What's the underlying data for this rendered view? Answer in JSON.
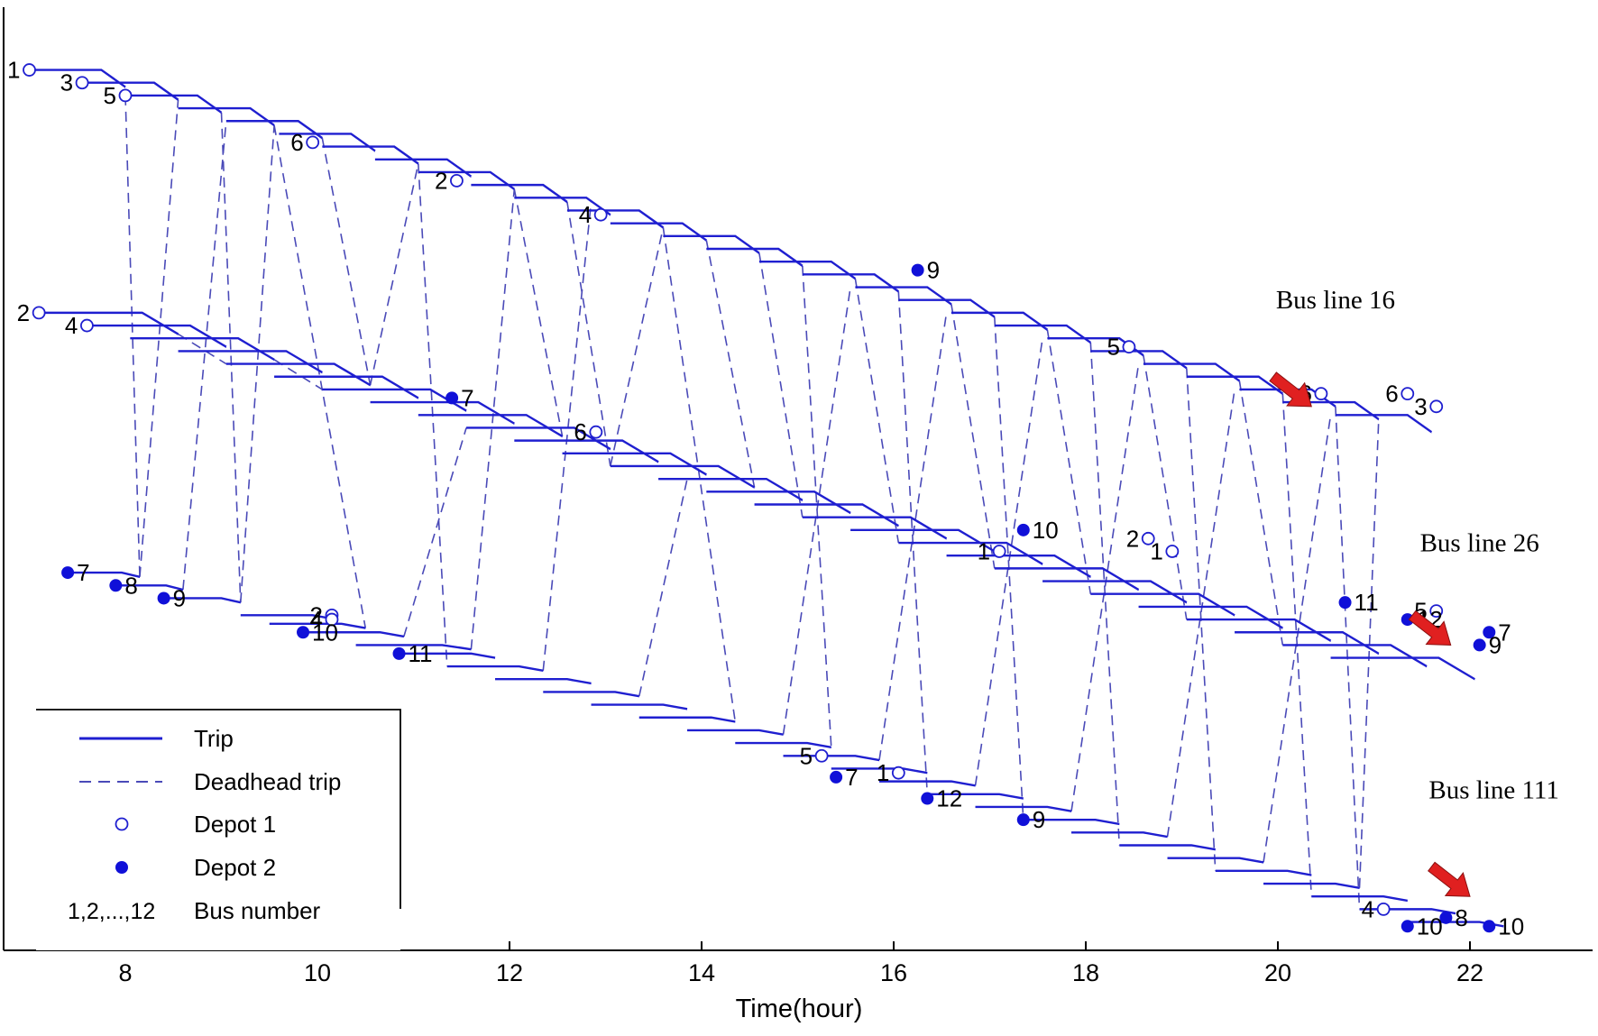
{
  "colors": {
    "trip": "#1f1fd0",
    "deadhead": "#4a4ab8",
    "depot2_fill": "#1010d8",
    "arrow": "#e02020",
    "axis": "#000000"
  },
  "chart_data": {
    "type": "line",
    "xlabel": "Time(hour)",
    "xlim": [
      6.8,
      23.5
    ],
    "xticks": [
      8,
      10,
      12,
      14,
      16,
      18,
      20,
      22
    ],
    "grid": false,
    "legend": {
      "placement": "bottom-left",
      "entries": [
        {
          "symbol": "solid-line",
          "label": "Trip"
        },
        {
          "symbol": "dashed-line",
          "label": "Deadhead trip"
        },
        {
          "symbol": "open-circle",
          "label": "Depot 1"
        },
        {
          "symbol": "filled-circle",
          "label": "Depot 2"
        },
        {
          "symbol": "text",
          "sample": "1,2,...,12",
          "label": "Bus number"
        }
      ]
    },
    "annotations": [
      {
        "text": "Bus line 16",
        "x": 20.6,
        "y": 69,
        "arrow_from": [
          19.95,
          61
        ],
        "arrow_to": [
          20.35,
          57.5
        ]
      },
      {
        "text": "Bus line 26",
        "x": 22.1,
        "y": 40.5,
        "arrow_from": [
          21.4,
          33
        ],
        "arrow_to": [
          21.8,
          29.5
        ]
      },
      {
        "text": "Bus line 111",
        "x": 22.25,
        "y": 11.5,
        "arrow_from": [
          21.6,
          3.5
        ],
        "arrow_to": [
          22.0,
          0
        ]
      }
    ],
    "bus_lines": [
      {
        "name": "Bus line 16",
        "trips": [
          [
            7.0,
            8.0,
            97,
            95
          ],
          [
            7.55,
            8.55,
            95.5,
            93.5
          ],
          [
            8.0,
            9.0,
            94,
            92
          ],
          [
            8.55,
            9.55,
            92.5,
            90.5
          ],
          [
            9.05,
            10.05,
            91,
            89
          ],
          [
            9.6,
            10.6,
            89.5,
            87.5
          ],
          [
            10.05,
            11.05,
            88,
            86
          ],
          [
            10.6,
            11.6,
            86.5,
            84.5
          ],
          [
            11.05,
            12.05,
            85,
            83
          ],
          [
            11.6,
            12.6,
            83.5,
            81.5
          ],
          [
            12.05,
            13.05,
            82,
            80
          ],
          [
            12.6,
            13.6,
            80.5,
            78.5
          ],
          [
            13.05,
            14.05,
            79,
            77
          ],
          [
            13.6,
            14.6,
            77.5,
            75.5
          ],
          [
            14.05,
            15.05,
            76,
            74
          ],
          [
            14.6,
            15.6,
            74.5,
            72.5
          ],
          [
            15.05,
            16.05,
            73,
            71
          ],
          [
            15.6,
            16.6,
            71.5,
            69.5
          ],
          [
            16.05,
            17.05,
            70,
            68
          ],
          [
            16.6,
            17.6,
            68.5,
            66.5
          ],
          [
            17.05,
            18.05,
            67,
            65
          ],
          [
            17.6,
            18.6,
            65.5,
            63.5
          ],
          [
            18.05,
            19.05,
            64,
            62
          ],
          [
            18.6,
            19.6,
            62.5,
            60.5
          ],
          [
            19.05,
            20.05,
            61,
            59
          ],
          [
            19.6,
            20.6,
            59.5,
            57.5
          ],
          [
            20.05,
            21.05,
            58,
            56
          ],
          [
            20.6,
            21.6,
            56.5,
            54.5
          ]
        ],
        "depot1": [
          {
            "x": 7.0,
            "y": 97,
            "bus": "1"
          },
          {
            "x": 7.55,
            "y": 95.5,
            "bus": "3"
          },
          {
            "x": 8.0,
            "y": 94,
            "bus": "5"
          },
          {
            "x": 9.95,
            "y": 88.5,
            "bus": "6"
          },
          {
            "x": 11.45,
            "y": 84,
            "bus": "2"
          },
          {
            "x": 12.95,
            "y": 80,
            "bus": "4"
          },
          {
            "x": 18.45,
            "y": 64.5,
            "bus": "5"
          },
          {
            "x": 20.45,
            "y": 59,
            "bus": "6"
          },
          {
            "x": 21.35,
            "y": 59,
            "bus": "6"
          },
          {
            "x": 21.65,
            "y": 57.5,
            "bus": "3"
          }
        ],
        "depot2": [
          {
            "x": 16.25,
            "y": 73.5,
            "bus": "9"
          }
        ]
      },
      {
        "name": "Bus line 26",
        "trips": [
          [
            7.05,
            8.55,
            68.5,
            66
          ],
          [
            7.55,
            9.05,
            67,
            64.5
          ],
          [
            8.05,
            9.55,
            65.5,
            63
          ],
          [
            8.55,
            10.05,
            64,
            61.5
          ],
          [
            9.05,
            10.55,
            62.5,
            60
          ],
          [
            9.55,
            11.05,
            61,
            58.5
          ],
          [
            10.05,
            11.55,
            59.5,
            57
          ],
          [
            10.55,
            12.05,
            58,
            55.5
          ],
          [
            11.05,
            12.55,
            56.5,
            54
          ],
          [
            11.55,
            13.05,
            55,
            52.5
          ],
          [
            12.05,
            13.55,
            53.5,
            51
          ],
          [
            12.55,
            14.05,
            52,
            49.5
          ],
          [
            13.05,
            14.55,
            50.5,
            48
          ],
          [
            13.55,
            15.05,
            49,
            46.5
          ],
          [
            14.05,
            15.55,
            47.5,
            45
          ],
          [
            14.55,
            16.05,
            46,
            43.5
          ],
          [
            15.05,
            16.55,
            44.5,
            42
          ],
          [
            15.55,
            17.05,
            43,
            40.5
          ],
          [
            16.05,
            17.55,
            41.5,
            39
          ],
          [
            16.55,
            18.05,
            40,
            37.5
          ],
          [
            17.05,
            18.55,
            38.5,
            36
          ],
          [
            17.55,
            19.05,
            37,
            34.5
          ],
          [
            18.05,
            19.55,
            35.5,
            33
          ],
          [
            18.55,
            20.05,
            34,
            31.5
          ],
          [
            19.05,
            20.55,
            32.5,
            30
          ],
          [
            19.55,
            21.05,
            31,
            28.5
          ],
          [
            20.05,
            21.55,
            29.5,
            27
          ],
          [
            20.55,
            22.05,
            28,
            25.5
          ]
        ],
        "depot1": [
          {
            "x": 7.1,
            "y": 68.5,
            "bus": "2"
          },
          {
            "x": 7.6,
            "y": 67,
            "bus": "4"
          },
          {
            "x": 12.9,
            "y": 54.5,
            "bus": "6"
          },
          {
            "x": 17.1,
            "y": 40.5,
            "bus": "1"
          },
          {
            "x": 18.65,
            "y": 42,
            "bus": "2"
          },
          {
            "x": 18.9,
            "y": 40.5,
            "bus": "1"
          },
          {
            "x": 21.65,
            "y": 33.5,
            "bus": "5"
          }
        ],
        "depot2": [
          {
            "x": 11.4,
            "y": 58.5,
            "bus": "7"
          },
          {
            "x": 17.35,
            "y": 43,
            "bus": "10"
          },
          {
            "x": 20.7,
            "y": 34.5,
            "bus": "11"
          },
          {
            "x": 21.35,
            "y": 32.5,
            "bus": "12"
          },
          {
            "x": 22.2,
            "y": 31,
            "bus": "7"
          },
          {
            "x": 22.1,
            "y": 29.5,
            "bus": "9"
          }
        ]
      },
      {
        "name": "Bus line 111",
        "trips": [
          [
            7.4,
            8.15,
            38,
            37.5
          ],
          [
            7.9,
            8.6,
            36.5,
            36
          ],
          [
            8.4,
            9.2,
            35,
            34.5
          ],
          [
            9.2,
            10.2,
            33,
            32.5
          ],
          [
            9.5,
            10.5,
            32,
            31.5
          ],
          [
            9.9,
            10.9,
            31,
            30.5
          ],
          [
            10.4,
            11.6,
            29.5,
            29
          ],
          [
            10.85,
            11.85,
            28.5,
            28
          ],
          [
            11.35,
            12.35,
            27,
            26.5
          ],
          [
            11.85,
            12.85,
            25.5,
            25
          ],
          [
            12.35,
            13.35,
            24,
            23.5
          ],
          [
            12.85,
            13.85,
            22.5,
            22
          ],
          [
            13.35,
            14.35,
            21,
            20.5
          ],
          [
            13.85,
            14.85,
            19.5,
            19
          ],
          [
            14.35,
            15.35,
            18,
            17.5
          ],
          [
            14.85,
            15.85,
            16.5,
            16
          ],
          [
            15.35,
            16.35,
            15,
            14.5
          ],
          [
            15.85,
            16.85,
            13.5,
            13
          ],
          [
            16.35,
            17.35,
            12,
            11.5
          ],
          [
            16.85,
            17.85,
            10.5,
            10
          ],
          [
            17.35,
            18.35,
            9,
            8.5
          ],
          [
            17.85,
            18.85,
            7.5,
            7
          ],
          [
            18.35,
            19.35,
            6,
            5.5
          ],
          [
            18.85,
            19.85,
            4.5,
            4
          ],
          [
            19.35,
            20.35,
            3,
            2.5
          ],
          [
            19.85,
            20.85,
            1.5,
            1
          ],
          [
            20.35,
            21.35,
            0,
            -0.5
          ],
          [
            20.85,
            21.85,
            -1.5,
            -2
          ],
          [
            21.35,
            22.35,
            -3,
            -3.5
          ]
        ],
        "depot1": [
          {
            "x": 10.15,
            "y": 33,
            "bus": "2"
          },
          {
            "x": 10.15,
            "y": 32.5,
            "bus": "4"
          },
          {
            "x": 15.25,
            "y": 16.5,
            "bus": "5"
          },
          {
            "x": 16.05,
            "y": 14.5,
            "bus": "1"
          },
          {
            "x": 21.1,
            "y": -1.5,
            "bus": "4"
          }
        ],
        "depot2": [
          {
            "x": 7.4,
            "y": 38,
            "bus": "7"
          },
          {
            "x": 7.9,
            "y": 36.5,
            "bus": "8"
          },
          {
            "x": 8.4,
            "y": 35,
            "bus": "9"
          },
          {
            "x": 9.85,
            "y": 31,
            "bus": "10"
          },
          {
            "x": 10.85,
            "y": 28.5,
            "bus": "11"
          },
          {
            "x": 15.4,
            "y": 14,
            "bus": "7"
          },
          {
            "x": 16.35,
            "y": 11.5,
            "bus": "12"
          },
          {
            "x": 17.35,
            "y": 9,
            "bus": "9"
          },
          {
            "x": 21.75,
            "y": -2.5,
            "bus": "8"
          },
          {
            "x": 21.35,
            "y": -3.5,
            "bus": "10"
          },
          {
            "x": 22.2,
            "y": -3.5,
            "bus": "10"
          }
        ]
      }
    ],
    "deadhead_links": [
      [
        8.0,
        94,
        8.15,
        37.5
      ],
      [
        8.15,
        37.5,
        8.55,
        93.5
      ],
      [
        8.6,
        36,
        9.05,
        91
      ],
      [
        9.0,
        92,
        9.2,
        34.5
      ],
      [
        9.2,
        34.5,
        9.55,
        90.5
      ],
      [
        9.55,
        90.5,
        10.5,
        31.5
      ],
      [
        10.05,
        89,
        10.55,
        60
      ],
      [
        10.55,
        60,
        11.05,
        86
      ],
      [
        11.05,
        86,
        11.35,
        27
      ],
      [
        11.6,
        29,
        12.05,
        83
      ],
      [
        12.05,
        83,
        12.55,
        54
      ],
      [
        12.6,
        81.5,
        13.05,
        50.5
      ],
      [
        13.05,
        50.5,
        13.6,
        78.5
      ],
      [
        13.6,
        78.5,
        14.35,
        20.5
      ],
      [
        14.05,
        77,
        14.55,
        48
      ],
      [
        14.6,
        75.5,
        15.05,
        44.5
      ],
      [
        15.05,
        74,
        15.35,
        17.5
      ],
      [
        15.6,
        72.5,
        16.05,
        41.5
      ],
      [
        16.05,
        71,
        16.35,
        12
      ],
      [
        16.6,
        69.5,
        17.05,
        38.5
      ],
      [
        17.05,
        68,
        17.35,
        9
      ],
      [
        17.6,
        66.5,
        18.05,
        35.5
      ],
      [
        18.05,
        65,
        18.35,
        6
      ],
      [
        18.6,
        63.5,
        19.05,
        32.5
      ],
      [
        19.05,
        62,
        19.35,
        3
      ],
      [
        19.6,
        60.5,
        20.05,
        29.5
      ],
      [
        20.05,
        59,
        20.35,
        0
      ],
      [
        20.6,
        57.5,
        20.85,
        -1.5
      ],
      [
        8.55,
        66,
        9.05,
        62.5
      ],
      [
        9.55,
        63,
        10.05,
        59.5
      ],
      [
        10.9,
        30.5,
        11.55,
        55
      ],
      [
        12.35,
        26.5,
        12.85,
        81.5
      ],
      [
        13.35,
        23.5,
        13.85,
        49
      ],
      [
        14.85,
        19,
        15.55,
        71.5
      ],
      [
        15.85,
        16,
        16.55,
        68.5
      ],
      [
        16.85,
        13,
        17.55,
        65.5
      ],
      [
        17.85,
        10,
        18.55,
        62.5
      ],
      [
        18.85,
        7,
        19.55,
        59.5
      ],
      [
        19.85,
        4,
        20.55,
        56.5
      ],
      [
        20.85,
        1,
        21.05,
        56
      ]
    ]
  }
}
